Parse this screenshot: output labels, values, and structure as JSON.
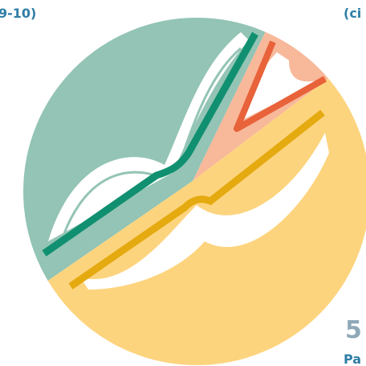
{
  "texts": {
    "top_left": "9-10)",
    "top_right": "(ci",
    "bottom_number": "5",
    "bottom_label": "Pa"
  }
}
